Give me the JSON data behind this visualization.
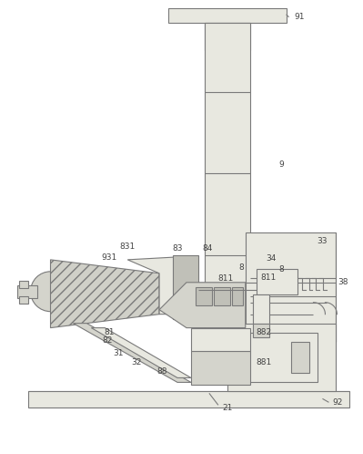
{
  "bg_color": "#ffffff",
  "line_color": "#7a7a7a",
  "lw": 0.8,
  "label_color": "#444444",
  "label_fontsize": 6.5
}
